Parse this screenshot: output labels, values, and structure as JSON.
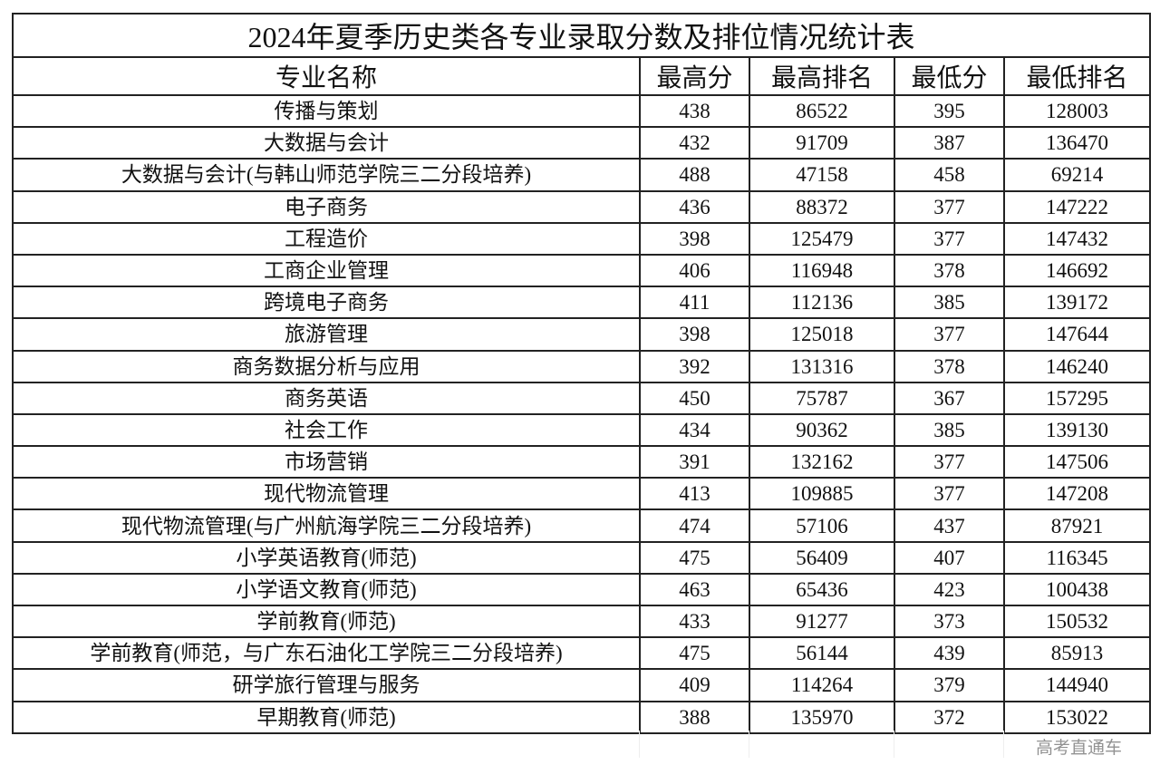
{
  "title": "2024年夏季历史类各专业录取分数及排位情况统计表",
  "columns": [
    "专业名称",
    "最高分",
    "最高排名",
    "最低分",
    "最低排名"
  ],
  "rows": [
    [
      "传播与策划",
      "438",
      "86522",
      "395",
      "128003"
    ],
    [
      "大数据与会计",
      "432",
      "91709",
      "387",
      "136470"
    ],
    [
      "大数据与会计(与韩山师范学院三二分段培养)",
      "488",
      "47158",
      "458",
      "69214"
    ],
    [
      "电子商务",
      "436",
      "88372",
      "377",
      "147222"
    ],
    [
      "工程造价",
      "398",
      "125479",
      "377",
      "147432"
    ],
    [
      "工商企业管理",
      "406",
      "116948",
      "378",
      "146692"
    ],
    [
      "跨境电子商务",
      "411",
      "112136",
      "385",
      "139172"
    ],
    [
      "旅游管理",
      "398",
      "125018",
      "377",
      "147644"
    ],
    [
      "商务数据分析与应用",
      "392",
      "131316",
      "378",
      "146240"
    ],
    [
      "商务英语",
      "450",
      "75787",
      "367",
      "157295"
    ],
    [
      "社会工作",
      "434",
      "90362",
      "385",
      "139130"
    ],
    [
      "市场营销",
      "391",
      "132162",
      "377",
      "147506"
    ],
    [
      "现代物流管理",
      "413",
      "109885",
      "377",
      "147208"
    ],
    [
      "现代物流管理(与广州航海学院三二分段培养)",
      "474",
      "57106",
      "437",
      "87921"
    ],
    [
      "小学英语教育(师范)",
      "475",
      "56409",
      "407",
      "116345"
    ],
    [
      "小学语文教育(师范)",
      "463",
      "65436",
      "423",
      "100438"
    ],
    [
      "学前教育(师范)",
      "433",
      "91277",
      "373",
      "150532"
    ],
    [
      "学前教育(师范，与广东石油化工学院三二分段培养)",
      "475",
      "56144",
      "439",
      "85913"
    ],
    [
      "研学旅行管理与服务",
      "409",
      "114264",
      "379",
      "144940"
    ],
    [
      "早期教育(师范)",
      "388",
      "135970",
      "372",
      "153022"
    ]
  ],
  "watermark": "高考直通车"
}
